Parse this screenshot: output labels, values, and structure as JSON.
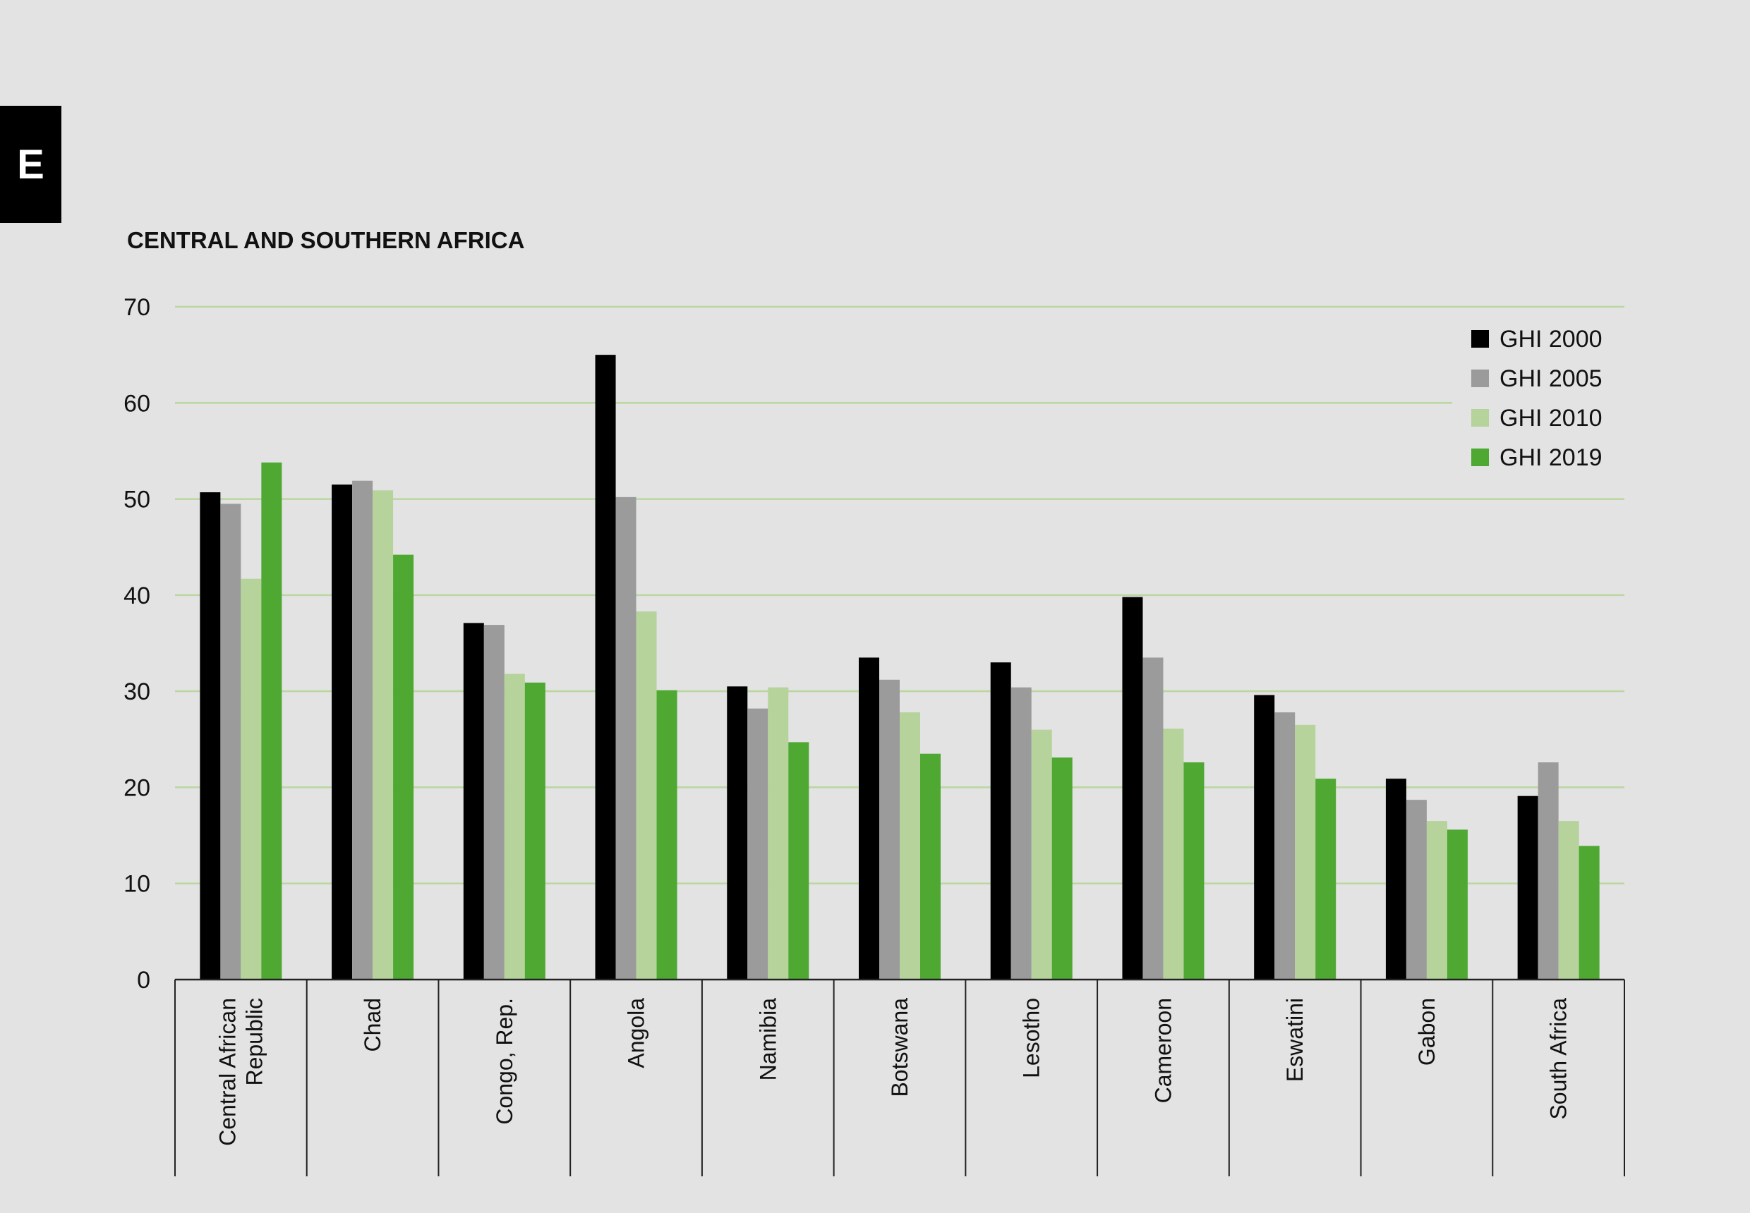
{
  "section_label": "E",
  "chart_data": {
    "type": "bar",
    "title": "CENTRAL AND SOUTHERN AFRICA",
    "xlabel": "",
    "ylabel": "",
    "ylim": [
      0,
      70
    ],
    "yticks": [
      0,
      10,
      20,
      30,
      40,
      50,
      60,
      70
    ],
    "grid": true,
    "legend_position": "top-right",
    "categories": [
      [
        "Central African",
        "Republic"
      ],
      [
        "Chad"
      ],
      [
        "Congo, Rep."
      ],
      [
        "Angola"
      ],
      [
        "Namibia"
      ],
      [
        "Botswana"
      ],
      [
        "Lesotho"
      ],
      [
        "Cameroon"
      ],
      [
        "Eswatini"
      ],
      [
        "Gabon"
      ],
      [
        "South Africa"
      ]
    ],
    "series": [
      {
        "name": "GHI 2000",
        "color": "#000000",
        "values": [
          50.7,
          51.5,
          37.1,
          65.0,
          30.5,
          33.5,
          33.0,
          39.8,
          29.6,
          20.9,
          19.1
        ]
      },
      {
        "name": "GHI 2005",
        "color": "#9b9b9b",
        "values": [
          49.5,
          51.9,
          36.9,
          50.2,
          28.2,
          31.2,
          30.4,
          33.5,
          27.8,
          18.7,
          22.6
        ]
      },
      {
        "name": "GHI 2010",
        "color": "#b5d39a",
        "values": [
          41.7,
          50.9,
          31.8,
          38.3,
          30.4,
          27.8,
          26.0,
          26.1,
          26.5,
          16.5,
          16.5
        ]
      },
      {
        "name": "GHI 2019",
        "color": "#4ea832",
        "values": [
          53.8,
          44.2,
          30.9,
          30.1,
          24.7,
          23.5,
          23.1,
          22.6,
          20.9,
          15.6,
          13.9
        ]
      }
    ],
    "colors": {
      "gridline": "#b9d79f",
      "axis": "#222222",
      "background": "#e3e3e3"
    }
  }
}
